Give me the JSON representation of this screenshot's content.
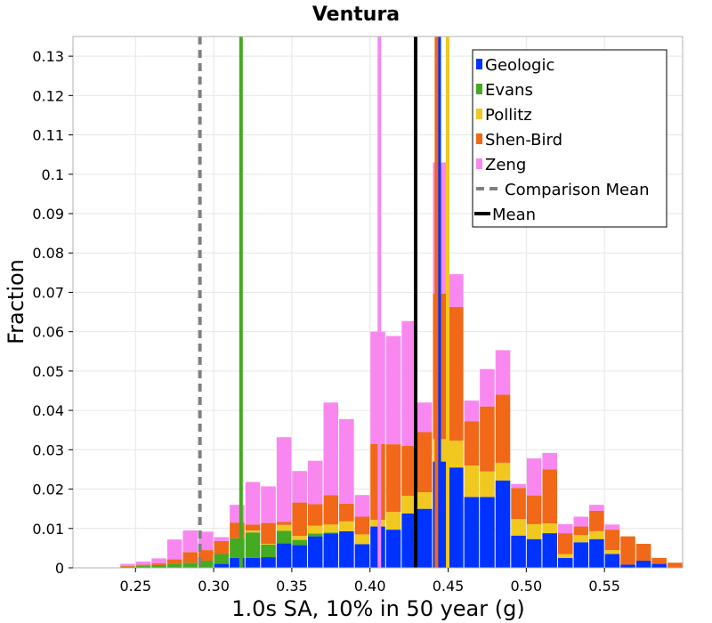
{
  "chart_data": {
    "type": "bar",
    "title": "Ventura",
    "xlabel": "1.0s SA, 10% in 50 year (g)",
    "ylabel": "Fraction",
    "xlim": [
      0.21,
      0.6
    ],
    "ylim": [
      0,
      0.135
    ],
    "grid": true,
    "legend_position": "top-right",
    "bin_width": 0.01,
    "xticks": [
      "0.25",
      "0.30",
      "0.35",
      "0.40",
      "0.45",
      "0.50",
      "0.55"
    ],
    "xtick_values": [
      0.25,
      0.3,
      0.35,
      0.4,
      0.45,
      0.5,
      0.55
    ],
    "yticks": [
      "0",
      "0.01",
      "0.02",
      "0.03",
      "0.04",
      "0.05",
      "0.06",
      "0.07",
      "0.08",
      "0.09",
      "0.1",
      "0.11",
      "0.12",
      "0.13"
    ],
    "ytick_values": [
      0,
      0.01,
      0.02,
      0.03,
      0.04,
      0.05,
      0.06,
      0.07,
      0.08,
      0.09,
      0.1,
      0.11,
      0.12,
      0.13
    ],
    "bin_starts": [
      0.24,
      0.25,
      0.26,
      0.27,
      0.28,
      0.29,
      0.3,
      0.31,
      0.32,
      0.33,
      0.34,
      0.35,
      0.36,
      0.37,
      0.38,
      0.39,
      0.4,
      0.41,
      0.42,
      0.43,
      0.44,
      0.45,
      0.46,
      0.47,
      0.48,
      0.49,
      0.5,
      0.51,
      0.52,
      0.53,
      0.54,
      0.55,
      0.56,
      0.57,
      0.58,
      0.59
    ],
    "series": [
      {
        "name": "Geologic",
        "color": "#0033ff",
        "values": [
          0,
          0,
          0,
          0,
          0,
          0,
          0.001,
          0.0025,
          0.0025,
          0.0027,
          0.0062,
          0.0058,
          0.008,
          0.0087,
          0.0093,
          0.006,
          0.0105,
          0.0097,
          0.0138,
          0.015,
          0.027,
          0.0255,
          0.018,
          0.018,
          0.0222,
          0.0082,
          0.0073,
          0.0088,
          0.0025,
          0.0065,
          0.0073,
          0.0035,
          0.0008,
          0.0018,
          0.001,
          0
        ]
      },
      {
        "name": "Evans",
        "color": "#44aa22",
        "values": [
          0.0003,
          0.0005,
          0.0007,
          0.001,
          0.0013,
          0.0018,
          0.0025,
          0.005,
          0.0065,
          0.0032,
          0.0032,
          0.0013,
          0.0007,
          0.0003,
          0,
          0,
          0,
          0,
          0,
          0,
          0,
          0,
          0,
          0,
          0,
          0,
          0,
          0,
          0,
          0,
          0,
          0,
          0,
          0,
          0,
          0
        ]
      },
      {
        "name": "Pollitz",
        "color": "#f0c820",
        "values": [
          0,
          0,
          0,
          0,
          0,
          0,
          0,
          0,
          0.0005,
          0.0002,
          0.0015,
          0.001,
          0.002,
          0.002,
          0.0025,
          0.0025,
          0.0017,
          0.0045,
          0.0045,
          0.0042,
          0.0057,
          0.0068,
          0.008,
          0.0065,
          0.0045,
          0.0042,
          0.0038,
          0.0025,
          0.001,
          0.0018,
          0.002,
          0.001,
          0,
          0,
          0,
          0
        ]
      },
      {
        "name": "Shen-Bird",
        "color": "#f06818",
        "values": [
          0.0002,
          0.0003,
          0.0005,
          0.0012,
          0.0027,
          0.0027,
          0.0033,
          0.004,
          0.0015,
          0.0053,
          0.0008,
          0.0085,
          0.0055,
          0.0075,
          0.0045,
          0.0045,
          0.0193,
          0.0172,
          0.0127,
          0.0153,
          0.037,
          0.034,
          0.0112,
          0.0165,
          0.0173,
          0.0079,
          0.0073,
          0.0137,
          0.0053,
          0.0022,
          0.0052,
          0.0052,
          0.0072,
          0.0043,
          0.0015,
          0.0013
        ]
      },
      {
        "name": "Zeng",
        "color": "#f888f0",
        "values": [
          0.0005,
          0.0008,
          0.0012,
          0.005,
          0.0055,
          0.0047,
          0.001,
          0.0045,
          0.0108,
          0.0093,
          0.0215,
          0.008,
          0.011,
          0.0235,
          0.0215,
          0.0055,
          0.0285,
          0.0275,
          0.0317,
          0.0075,
          0.0333,
          0.0083,
          0.0053,
          0.0095,
          0.0113,
          0.001,
          0.0094,
          0.0042,
          0.0023,
          0.0025,
          0.0015,
          0.0013,
          0,
          0,
          0,
          0
        ]
      }
    ],
    "mean_lines": [
      {
        "name": "Geologic",
        "x": 0.4443,
        "color": "#0033ff"
      },
      {
        "name": "Evans",
        "x": 0.3175,
        "color": "#44aa22"
      },
      {
        "name": "Pollitz",
        "x": 0.4497,
        "color": "#f0c820"
      },
      {
        "name": "Shen-Bird",
        "x": 0.4425,
        "color": "#f06818"
      },
      {
        "name": "Zeng",
        "x": 0.406,
        "color": "#f888f0"
      }
    ],
    "comparison_mean": {
      "name": "Comparison Mean",
      "x": 0.2912,
      "color": "#808080"
    },
    "mean": {
      "name": "Mean",
      "x": 0.4292,
      "color": "#000000"
    },
    "legend": [
      {
        "label": "Geologic",
        "color": "#0033ff",
        "kind": "box"
      },
      {
        "label": "Evans",
        "color": "#44aa22",
        "kind": "box"
      },
      {
        "label": "Pollitz",
        "color": "#f0c820",
        "kind": "box"
      },
      {
        "label": "Shen-Bird",
        "color": "#f06818",
        "kind": "box"
      },
      {
        "label": "Zeng",
        "color": "#f888f0",
        "kind": "box"
      },
      {
        "label": "Comparison Mean",
        "color": "#808080",
        "kind": "dash"
      },
      {
        "label": "Mean",
        "color": "#000000",
        "kind": "line"
      }
    ]
  }
}
